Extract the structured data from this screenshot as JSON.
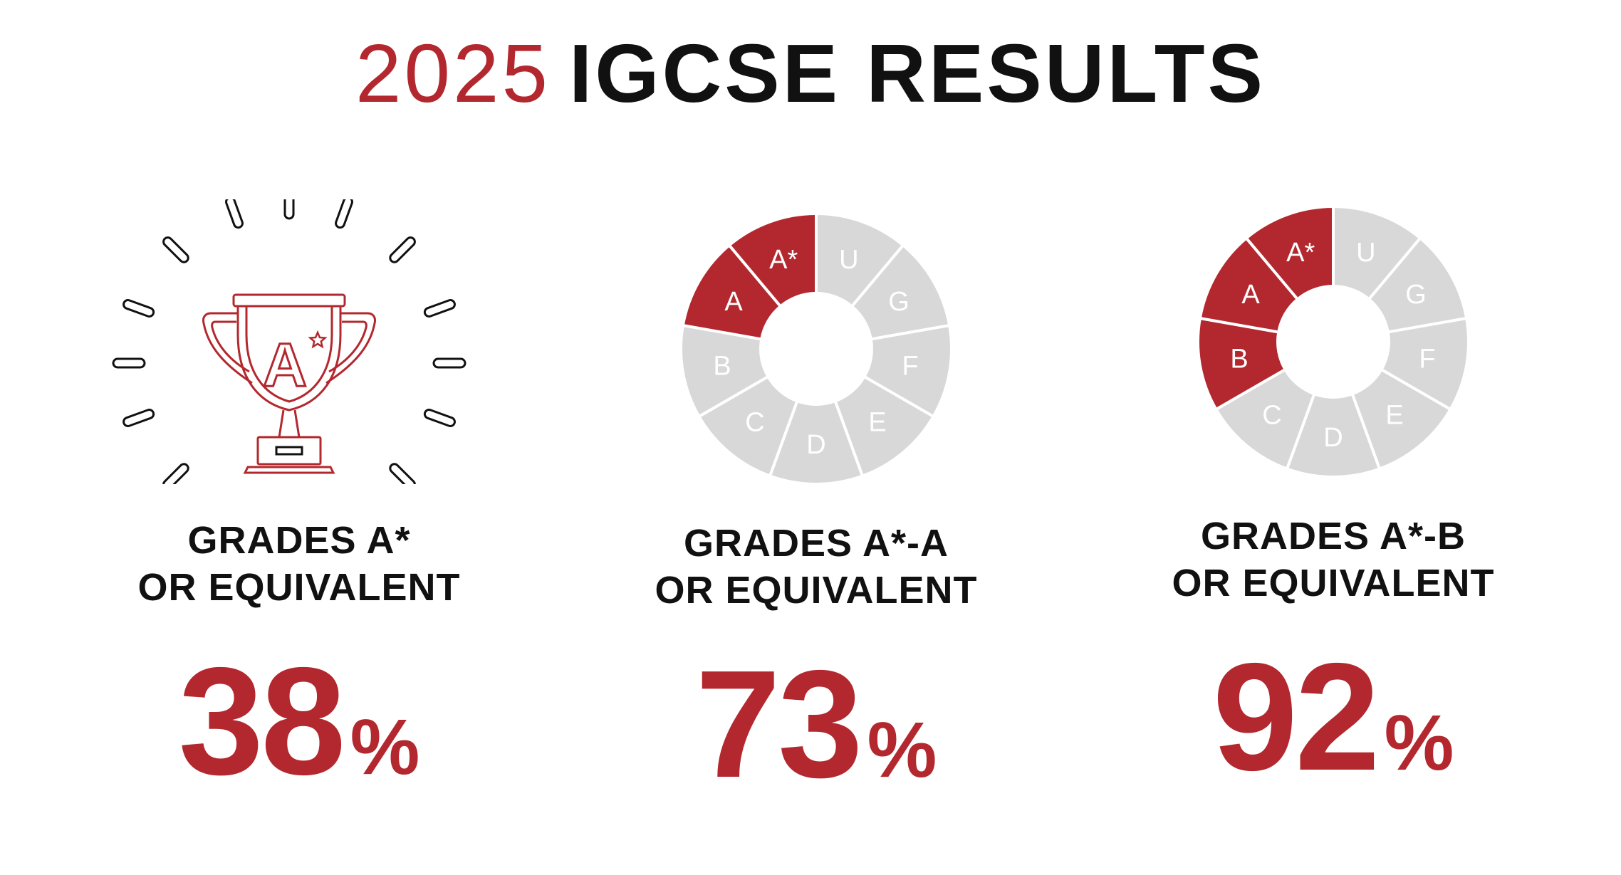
{
  "title": {
    "year": "2025",
    "rest": "IGCSE RESULTS"
  },
  "colors": {
    "accent": "#b3282e",
    "muted": "#d8d8d8",
    "text": "#111111",
    "segment_label": "#ffffff"
  },
  "stats": [
    {
      "visual": "trophy-icon",
      "trophy_label": "A",
      "line1": "GRADES A*",
      "line2": "OR EQUIVALENT",
      "value": "38",
      "unit": "%"
    },
    {
      "visual": "grade-donut",
      "line1": "GRADES A*-A",
      "line2": "OR EQUIVALENT",
      "value": "73",
      "unit": "%",
      "highlighted": [
        "A*",
        "A"
      ]
    },
    {
      "visual": "grade-donut",
      "line1": "GRADES A*-B",
      "line2": "OR EQUIVALENT",
      "value": "92",
      "unit": "%",
      "highlighted": [
        "A*",
        "A",
        "B"
      ]
    }
  ],
  "grades_clockwise": [
    "U",
    "G",
    "F",
    "E",
    "D",
    "C",
    "B",
    "A",
    "A*"
  ]
}
